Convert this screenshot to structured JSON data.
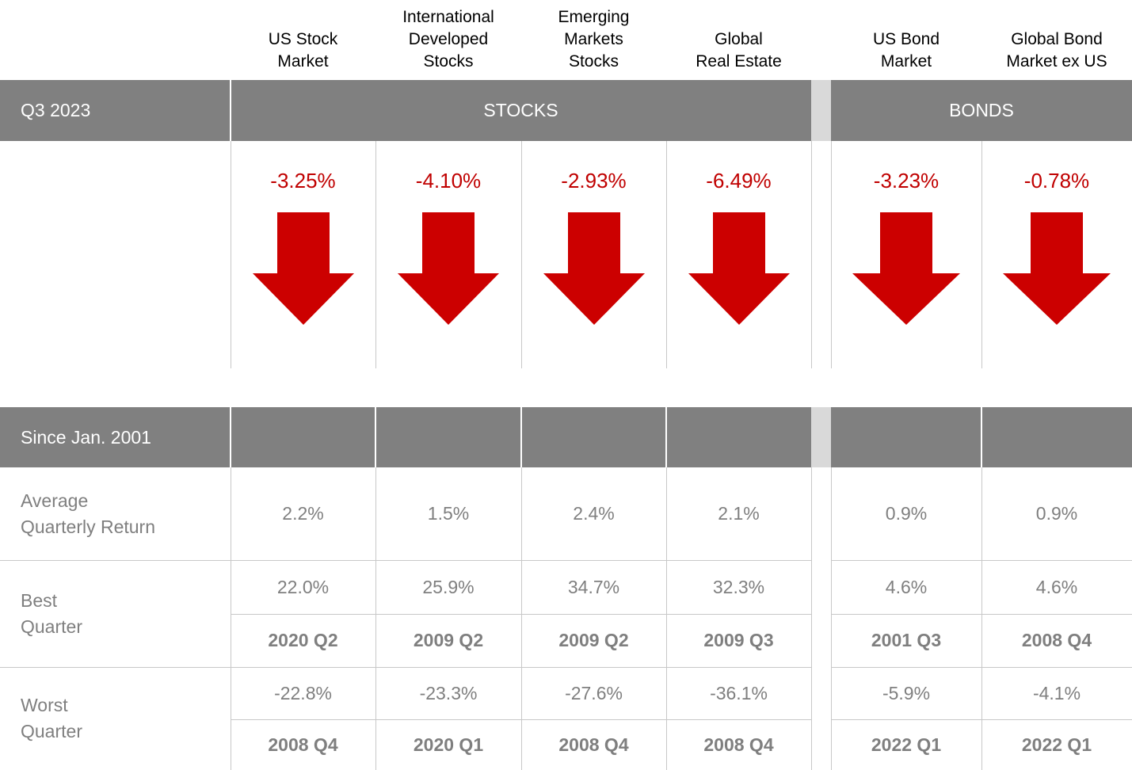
{
  "columns": [
    "US Stock\nMarket",
    "International\nDeveloped\nStocks",
    "Emerging\nMarkets\nStocks",
    "Global\nReal Estate",
    "US Bond\nMarket",
    "Global Bond\nMarket ex US"
  ],
  "quarter": {
    "label": "Q3 2023",
    "groups": [
      "STOCKS",
      "BONDS"
    ],
    "returns": [
      "-3.25%",
      "-4.10%",
      "-2.93%",
      "-6.49%",
      "-3.23%",
      "-0.78%"
    ]
  },
  "history": {
    "label": "Since Jan. 2001",
    "rows": [
      {
        "label": "Average\nQuarterly Return",
        "values": [
          "2.2%",
          "1.5%",
          "2.4%",
          "2.1%",
          "0.9%",
          "0.9%"
        ]
      },
      {
        "label": "Best\nQuarter",
        "values": [
          "22.0%",
          "25.9%",
          "34.7%",
          "32.3%",
          "4.6%",
          "4.6%"
        ],
        "quarters": [
          "2020 Q2",
          "2009 Q2",
          "2009 Q2",
          "2009 Q3",
          "2001 Q3",
          "2008 Q4"
        ]
      },
      {
        "label": "Worst\nQuarter",
        "values": [
          "-22.8%",
          "-23.3%",
          "-27.6%",
          "-36.1%",
          "-5.9%",
          "-4.1%"
        ],
        "quarters": [
          "2008 Q4",
          "2020 Q1",
          "2008 Q4",
          "2008 Q4",
          "2022 Q1",
          "2022 Q1"
        ]
      }
    ]
  }
}
